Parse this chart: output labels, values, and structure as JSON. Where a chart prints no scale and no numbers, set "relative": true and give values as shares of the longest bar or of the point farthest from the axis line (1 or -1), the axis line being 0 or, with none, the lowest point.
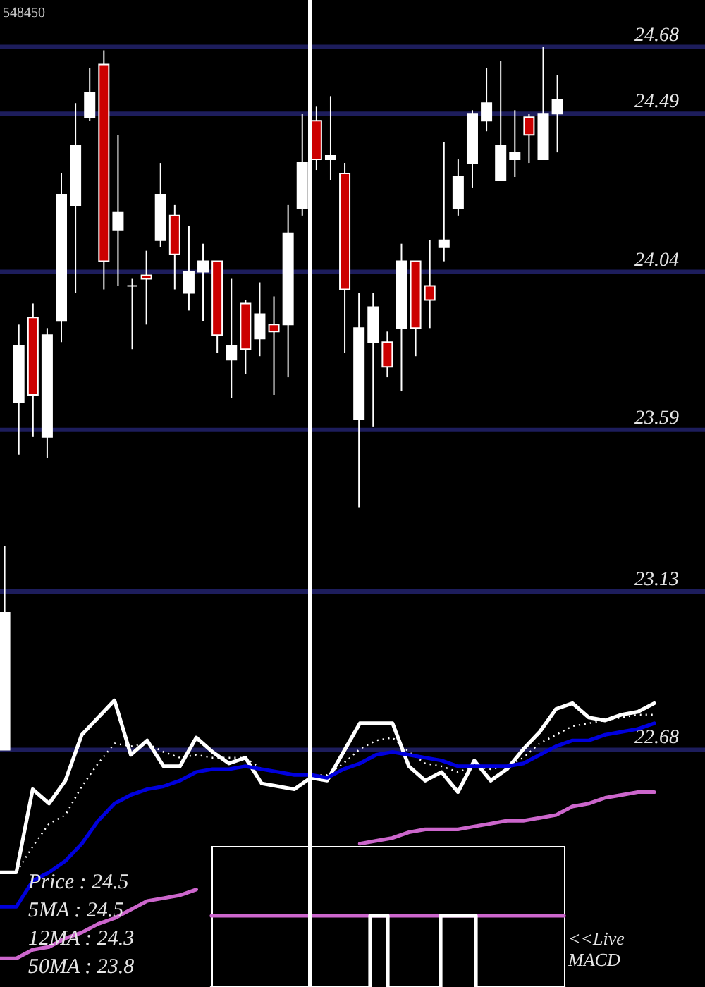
{
  "chart_data": [
    {
      "type": "candlestick",
      "title": "548450",
      "categories": [
        null,
        null,
        null,
        null,
        null,
        null,
        null,
        null,
        null,
        null,
        null,
        null,
        null,
        null,
        null,
        null,
        null,
        null,
        null,
        null,
        null,
        null,
        null,
        null,
        null,
        null,
        null,
        null,
        null,
        null,
        null,
        null,
        null,
        null,
        null,
        null,
        null,
        null,
        null,
        null
      ],
      "ohlc": [
        [
          22.68,
          23.26,
          22.68,
          23.07
        ],
        [
          23.67,
          23.89,
          23.52,
          23.83
        ],
        [
          23.91,
          23.95,
          23.57,
          23.69
        ],
        [
          23.57,
          23.88,
          23.51,
          23.86
        ],
        [
          23.9,
          24.32,
          23.84,
          24.26
        ],
        [
          24.23,
          24.52,
          23.98,
          24.4
        ],
        [
          24.48,
          24.62,
          24.47,
          24.55
        ],
        [
          24.63,
          24.67,
          23.99,
          24.07
        ],
        [
          24.16,
          24.43,
          24.0,
          24.21
        ],
        [
          24.0,
          24.02,
          23.82,
          24.0
        ],
        [
          24.03,
          24.1,
          23.89,
          24.02
        ],
        [
          24.13,
          24.35,
          24.11,
          24.26
        ],
        [
          24.2,
          24.23,
          23.99,
          24.09
        ],
        [
          23.98,
          24.17,
          23.93,
          24.04
        ],
        [
          24.04,
          24.12,
          23.9,
          24.07
        ],
        [
          24.07,
          24.07,
          23.81,
          23.86
        ],
        [
          23.79,
          24.02,
          23.68,
          23.83
        ],
        [
          23.95,
          23.96,
          23.75,
          23.82
        ],
        [
          23.85,
          24.01,
          23.8,
          23.92
        ],
        [
          23.89,
          23.97,
          23.69,
          23.87
        ],
        [
          23.89,
          24.23,
          23.74,
          24.15
        ],
        [
          24.22,
          24.49,
          24.2,
          24.35
        ],
        [
          24.47,
          24.51,
          24.33,
          24.36
        ],
        [
          24.36,
          24.54,
          24.3,
          24.37
        ],
        [
          24.32,
          24.35,
          23.81,
          23.99
        ],
        [
          23.62,
          23.98,
          23.37,
          23.88
        ],
        [
          23.84,
          23.98,
          23.6,
          23.94
        ],
        [
          23.84,
          23.87,
          23.74,
          23.77
        ],
        [
          23.88,
          24.12,
          23.7,
          24.07
        ],
        [
          24.07,
          24.07,
          23.8,
          23.88
        ],
        [
          24.0,
          24.13,
          23.88,
          23.96
        ],
        [
          24.11,
          24.41,
          24.07,
          24.13
        ],
        [
          24.22,
          24.36,
          24.2,
          24.31
        ],
        [
          24.35,
          24.5,
          24.28,
          24.49
        ],
        [
          24.47,
          24.62,
          24.44,
          24.52
        ],
        [
          24.3,
          24.64,
          24.3,
          24.4
        ],
        [
          24.36,
          24.5,
          24.31,
          24.38
        ],
        [
          24.48,
          24.49,
          24.35,
          24.43
        ],
        [
          24.36,
          24.68,
          24.36,
          24.49
        ],
        [
          24.49,
          24.6,
          24.38,
          24.53
        ]
      ],
      "colors": [
        "#ffffff",
        "#ffffff",
        "#cc0000",
        "#ffffff",
        "#ffffff",
        "#ffffff",
        "#ffffff",
        "#cc0000",
        "#ffffff",
        "#ffffff",
        "#cc0000",
        "#ffffff",
        "#cc0000",
        "#ffffff",
        "#ffffff",
        "#cc0000",
        "#ffffff",
        "#cc0000",
        "#ffffff",
        "#cc0000",
        "#ffffff",
        "#ffffff",
        "#cc0000",
        "#ffffff",
        "#cc0000",
        "#ffffff",
        "#ffffff",
        "#cc0000",
        "#ffffff",
        "#cc0000",
        "#cc0000",
        "#ffffff",
        "#ffffff",
        "#ffffff",
        "#ffffff",
        "#ffffff",
        "#ffffff",
        "#cc0000",
        "#ffffff",
        "#ffffff"
      ],
      "ylim": [
        22.68,
        24.68
      ],
      "yticks": [
        22.68,
        23.13,
        23.59,
        24.04,
        24.49,
        24.68
      ],
      "grid": "y",
      "tick_labels": "y"
    },
    {
      "type": "line",
      "relative": true,
      "tick_labels": false,
      "categories": [
        null,
        null,
        null,
        null,
        null,
        null,
        null,
        null,
        null,
        null,
        null,
        null,
        null,
        null,
        null,
        null,
        null,
        null,
        null,
        null,
        null,
        null,
        null,
        null,
        null,
        null,
        null,
        null,
        null,
        null,
        null,
        null,
        null,
        null,
        null,
        null,
        null,
        null,
        null,
        null,
        null
      ],
      "series": [
        {
          "color": "#ffffff",
          "values": [
            0.4,
            0.4,
            0.69,
            0.64,
            0.72,
            0.88,
            0.94,
            1.0,
            0.81,
            0.86,
            0.77,
            0.77,
            0.87,
            0.82,
            0.78,
            0.8,
            0.71,
            0.7,
            0.69,
            0.73,
            0.72,
            0.82,
            0.92,
            0.92,
            0.92,
            0.77,
            0.72,
            0.75,
            0.68,
            0.79,
            0.72,
            0.76,
            0.83,
            0.89,
            0.97,
            0.99,
            0.94,
            0.93,
            0.95,
            0.96,
            0.99
          ]
        },
        {
          "color": "#ffffff",
          "line_style": "dotted",
          "values": [
            0.4,
            0.4,
            0.49,
            0.57,
            0.6,
            0.7,
            0.78,
            0.85,
            0.84,
            0.85,
            0.82,
            0.8,
            0.81,
            0.8,
            0.8,
            0.8,
            0.76,
            0.75,
            0.74,
            0.74,
            0.74,
            0.78,
            0.83,
            0.86,
            0.87,
            0.82,
            0.78,
            0.77,
            0.75,
            0.77,
            0.76,
            0.77,
            0.8,
            0.85,
            0.88,
            0.91,
            0.92,
            0.93,
            0.94,
            0.95,
            0.95
          ]
        },
        {
          "color": "#0000dd",
          "values": [
            0.28,
            0.28,
            0.37,
            0.4,
            0.44,
            0.5,
            0.58,
            0.64,
            0.67,
            0.69,
            0.7,
            0.72,
            0.75,
            0.76,
            0.76,
            0.77,
            0.76,
            0.75,
            0.74,
            0.74,
            0.73,
            0.76,
            0.78,
            0.81,
            0.82,
            0.81,
            0.8,
            0.79,
            0.77,
            0.77,
            0.77,
            0.77,
            0.78,
            0.81,
            0.84,
            0.86,
            0.86,
            0.88,
            0.89,
            0.9,
            0.92
          ]
        },
        {
          "color": "#cc66cc",
          "values": [
            0.1,
            0.1,
            0.13,
            0.14,
            0.17,
            0.19,
            0.22,
            0.24,
            0.27,
            0.3,
            0.31,
            0.32,
            0.34,
            null,
            null,
            null,
            null,
            null,
            null,
            null,
            null,
            null,
            0.5,
            0.51,
            0.52,
            0.54,
            0.55,
            0.55,
            0.55,
            0.56,
            0.57,
            0.58,
            0.58,
            0.59,
            0.6,
            0.63,
            0.64,
            0.66,
            0.67,
            0.68,
            0.68
          ]
        }
      ],
      "annotations": [
        "Price   : 24.5",
        "5MA : 24.5",
        "12MA : 24.3",
        "50MA : 23.8"
      ]
    },
    {
      "type": "step",
      "relative": true,
      "tick_labels": false,
      "categories": [
        null,
        null,
        null,
        null,
        null,
        null,
        null,
        null,
        null,
        null,
        null,
        null,
        null,
        null,
        null,
        null,
        null,
        null,
        null,
        null,
        null
      ],
      "series": [
        {
          "color": "#cc66cc",
          "values": [
            1,
            1,
            1,
            1,
            1,
            1,
            1,
            1,
            1,
            1,
            1,
            1,
            1,
            1,
            1,
            1,
            1,
            1,
            1,
            1,
            1
          ]
        },
        {
          "color": "#ffffff",
          "values": [
            0,
            0,
            0,
            0,
            0,
            0,
            0,
            0,
            0,
            1,
            0,
            0,
            0,
            1,
            1,
            0,
            0,
            0,
            0,
            0,
            0
          ]
        }
      ],
      "annotations": [
        "<<Live MACD"
      ]
    }
  ]
}
